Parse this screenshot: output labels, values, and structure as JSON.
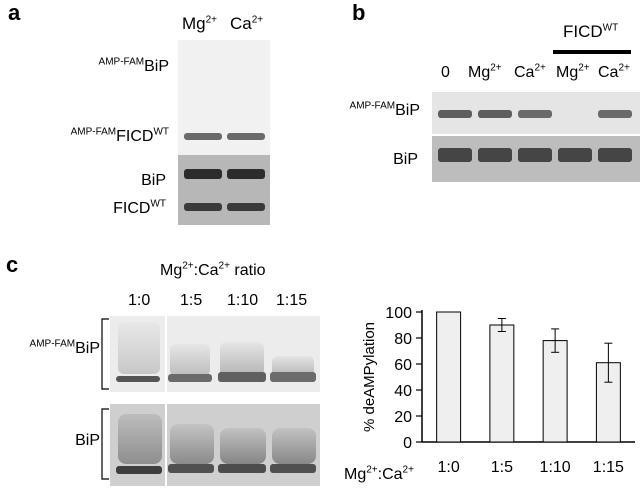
{
  "panel_a": {
    "letter": "a",
    "lanes": [
      {
        "main": "Mg",
        "sup": "2+"
      },
      {
        "main": "Ca",
        "sup": "2+"
      }
    ],
    "rows": [
      {
        "prefix": "AMP-FAM",
        "main": "BiP",
        "sup": ""
      },
      {
        "prefix": "AMP-FAM",
        "main": "FICD",
        "sup": "WT"
      },
      {
        "prefix": "",
        "main": "BiP",
        "sup": ""
      },
      {
        "prefix": "",
        "main": "FICD",
        "sup": "WT"
      }
    ]
  },
  "panel_b": {
    "letter": "b",
    "group_label": {
      "main": "FICD",
      "sup": "WT"
    },
    "lanes": [
      {
        "main": "0",
        "sup": ""
      },
      {
        "main": "Mg",
        "sup": "2+"
      },
      {
        "main": "Ca",
        "sup": "2+"
      },
      {
        "main": "Mg",
        "sup": "2+"
      },
      {
        "main": "Ca",
        "sup": "2+"
      }
    ],
    "rows": [
      {
        "prefix": "AMP-FAM",
        "main": "BiP"
      },
      {
        "prefix": "",
        "main": "BiP"
      }
    ]
  },
  "panel_c": {
    "letter": "c",
    "ratio_title": {
      "a": "Mg",
      "a_sup": "2+",
      "mid": ":Ca",
      "b_sup": "2+",
      "tail": " ratio"
    },
    "lanes": [
      "1:0",
      "1:5",
      "1:10",
      "1:15"
    ],
    "rows": [
      {
        "prefix": "AMP-FAM",
        "main": "BiP"
      },
      {
        "prefix": "",
        "main": "BiP"
      }
    ],
    "x_axis_prefix": {
      "a": "Mg",
      "a_sup": "2+",
      "mid": ":Ca",
      "b_sup": "2+"
    }
  },
  "chart_data": {
    "type": "bar",
    "categories": [
      "1:0",
      "1:5",
      "1:10",
      "1:15"
    ],
    "values": [
      100,
      90,
      78,
      61
    ],
    "errors": [
      0,
      5,
      9,
      15
    ],
    "ylabel": "% deAMPylation",
    "ylim": [
      0,
      100
    ],
    "yticks": [
      0,
      20,
      40,
      60,
      80,
      100
    ],
    "bar_color": "#efefef"
  }
}
